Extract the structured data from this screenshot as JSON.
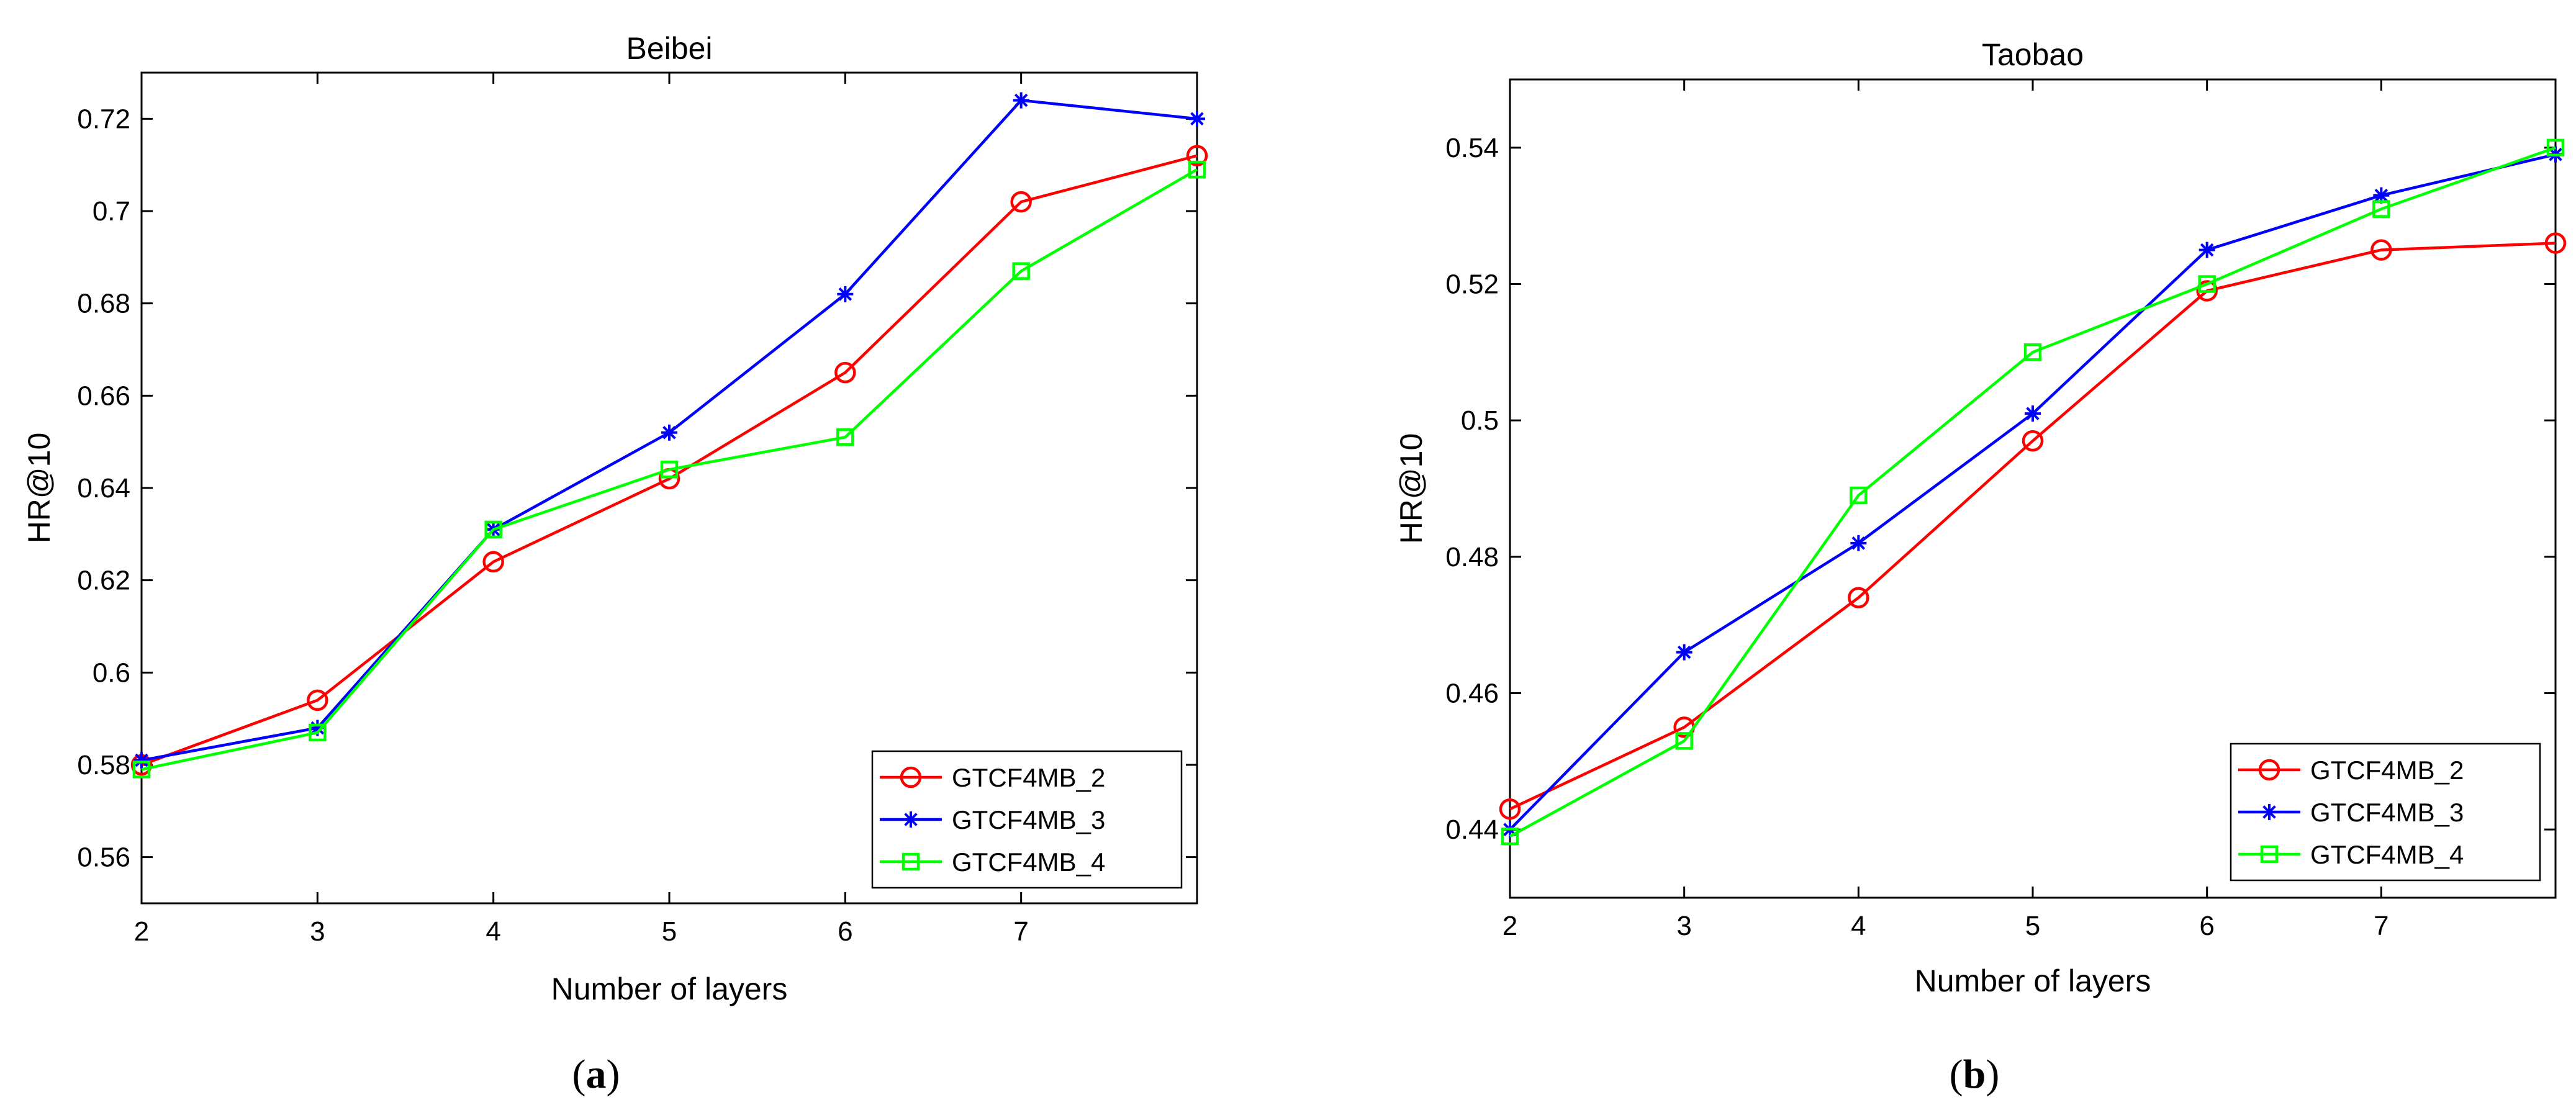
{
  "chart_data": [
    {
      "type": "line",
      "title": "Beibei",
      "xlabel": "Number of layers",
      "ylabel": "HR@10",
      "caption": {
        "open": "(",
        "letter": "a",
        "close": ")"
      },
      "x": [
        2,
        3,
        4,
        5,
        6,
        7,
        8
      ],
      "xticks": [
        2,
        3,
        4,
        5,
        6,
        7
      ],
      "xlim": [
        2,
        8
      ],
      "ylim": [
        0.55,
        0.73
      ],
      "yticks": [
        0.56,
        0.58,
        0.6,
        0.62,
        0.64,
        0.66,
        0.68,
        0.7,
        0.72
      ],
      "ytick_labels": [
        "0.56",
        "0.58",
        "0.6",
        "0.62",
        "0.64",
        "0.66",
        "0.68",
        "0.7",
        "0.72"
      ],
      "legend_position": "bottom-right",
      "series": [
        {
          "name": "GTCF4MB_2",
          "color": "#ff0000",
          "marker": "circle",
          "values": [
            0.58,
            0.594,
            0.624,
            0.642,
            0.665,
            0.702,
            0.712
          ]
        },
        {
          "name": "GTCF4MB_3",
          "color": "#0000ff",
          "marker": "asterisk",
          "values": [
            0.581,
            0.588,
            0.631,
            0.652,
            0.682,
            0.724,
            0.72
          ]
        },
        {
          "name": "GTCF4MB_4",
          "color": "#00ff00",
          "marker": "square",
          "values": [
            0.579,
            0.587,
            0.631,
            0.644,
            0.651,
            0.687,
            0.709
          ]
        }
      ]
    },
    {
      "type": "line",
      "title": "Taobao",
      "xlabel": "Number of layers",
      "ylabel": "HR@10",
      "caption": {
        "open": "(",
        "letter": "b",
        "close": ")"
      },
      "x": [
        2,
        3,
        4,
        5,
        6,
        7,
        8
      ],
      "xticks": [
        2,
        3,
        4,
        5,
        6,
        7
      ],
      "xlim": [
        2,
        8
      ],
      "ylim": [
        0.43,
        0.55
      ],
      "yticks": [
        0.44,
        0.46,
        0.48,
        0.5,
        0.52,
        0.54
      ],
      "ytick_labels": [
        "0.44",
        "0.46",
        "0.48",
        "0.5",
        "0.52",
        "0.54"
      ],
      "legend_position": "bottom-right",
      "series": [
        {
          "name": "GTCF4MB_2",
          "color": "#ff0000",
          "marker": "circle",
          "values": [
            0.443,
            0.455,
            0.474,
            0.497,
            0.519,
            0.525,
            0.526
          ]
        },
        {
          "name": "GTCF4MB_3",
          "color": "#0000ff",
          "marker": "asterisk",
          "values": [
            0.44,
            0.466,
            0.482,
            0.501,
            0.525,
            0.533,
            0.539
          ]
        },
        {
          "name": "GTCF4MB_4",
          "color": "#00ff00",
          "marker": "square",
          "values": [
            0.439,
            0.453,
            0.489,
            0.51,
            0.52,
            0.531,
            0.54
          ]
        }
      ]
    }
  ]
}
